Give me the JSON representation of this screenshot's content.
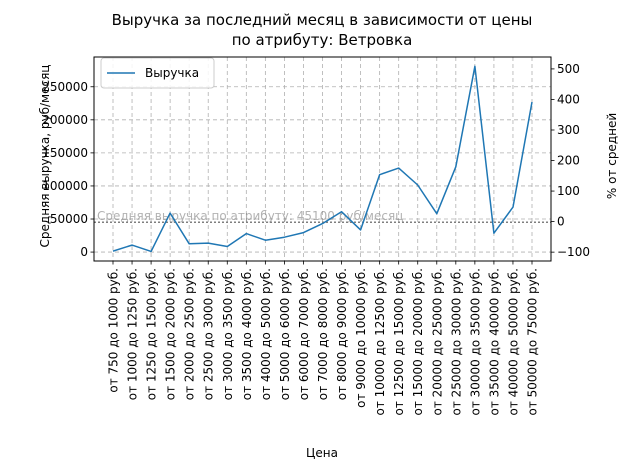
{
  "chart_data": {
    "type": "line",
    "title_line1": "Выручка за последний месяц в зависимости от цены",
    "title_line2": "по атрибуту: Ветровка",
    "xlabel": "Цена",
    "ylabel": "Средняя выручка, руб/месяц",
    "ylabel_right": "% от средней",
    "categories": [
      "от 750 до 1000 руб.",
      "от 1000 до 1250 руб.",
      "от 1250 до 1500 руб.",
      "от 1500 до 2000 руб.",
      "от 2000 до 2500 руб.",
      "от 2500 до 3000 руб.",
      "от 3000 до 3500 руб.",
      "от 3500 до 4000 руб.",
      "от 4000 до 5000 руб.",
      "от 5000 до 6000 руб.",
      "от 6000 до 7000 руб.",
      "от 7000 до 8000 руб.",
      "от 8000 до 9000 руб.",
      "от 9000 до 10000 руб.",
      "от 10000 до 12500 руб.",
      "от 12500 до 15000 руб.",
      "от 15000 до 20000 руб.",
      "от 20000 до 25000 руб.",
      "от 25000 до 30000 руб.",
      "от 30000 до 35000 руб.",
      "от 35000 до 40000 руб.",
      "от 40000 до 50000 руб.",
      "от 50000 до 75000 руб."
    ],
    "series": [
      {
        "name": "Выручка",
        "color": "#1f77b4",
        "values": [
          1500,
          10500,
          1000,
          59000,
          12500,
          13500,
          8500,
          28000,
          18000,
          22500,
          29500,
          43000,
          61000,
          33500,
          117000,
          127000,
          101500,
          58000,
          129000,
          281000,
          28500,
          68000,
          227000
        ]
      }
    ],
    "ylim": [
      -13500,
      295000
    ],
    "yticks": [
      0,
      50000,
      100000,
      150000,
      200000,
      250000
    ],
    "ylim_right": [
      -129,
      539
    ],
    "yticks_right": [
      -100,
      0,
      100,
      200,
      300,
      400,
      500
    ],
    "average_line": {
      "value": 45100,
      "label": "Средняя выручка по атрибуту: 45100 руб/месяц",
      "color": "#7f7f7f"
    },
    "grid": true,
    "legend_position": "upper-left"
  }
}
